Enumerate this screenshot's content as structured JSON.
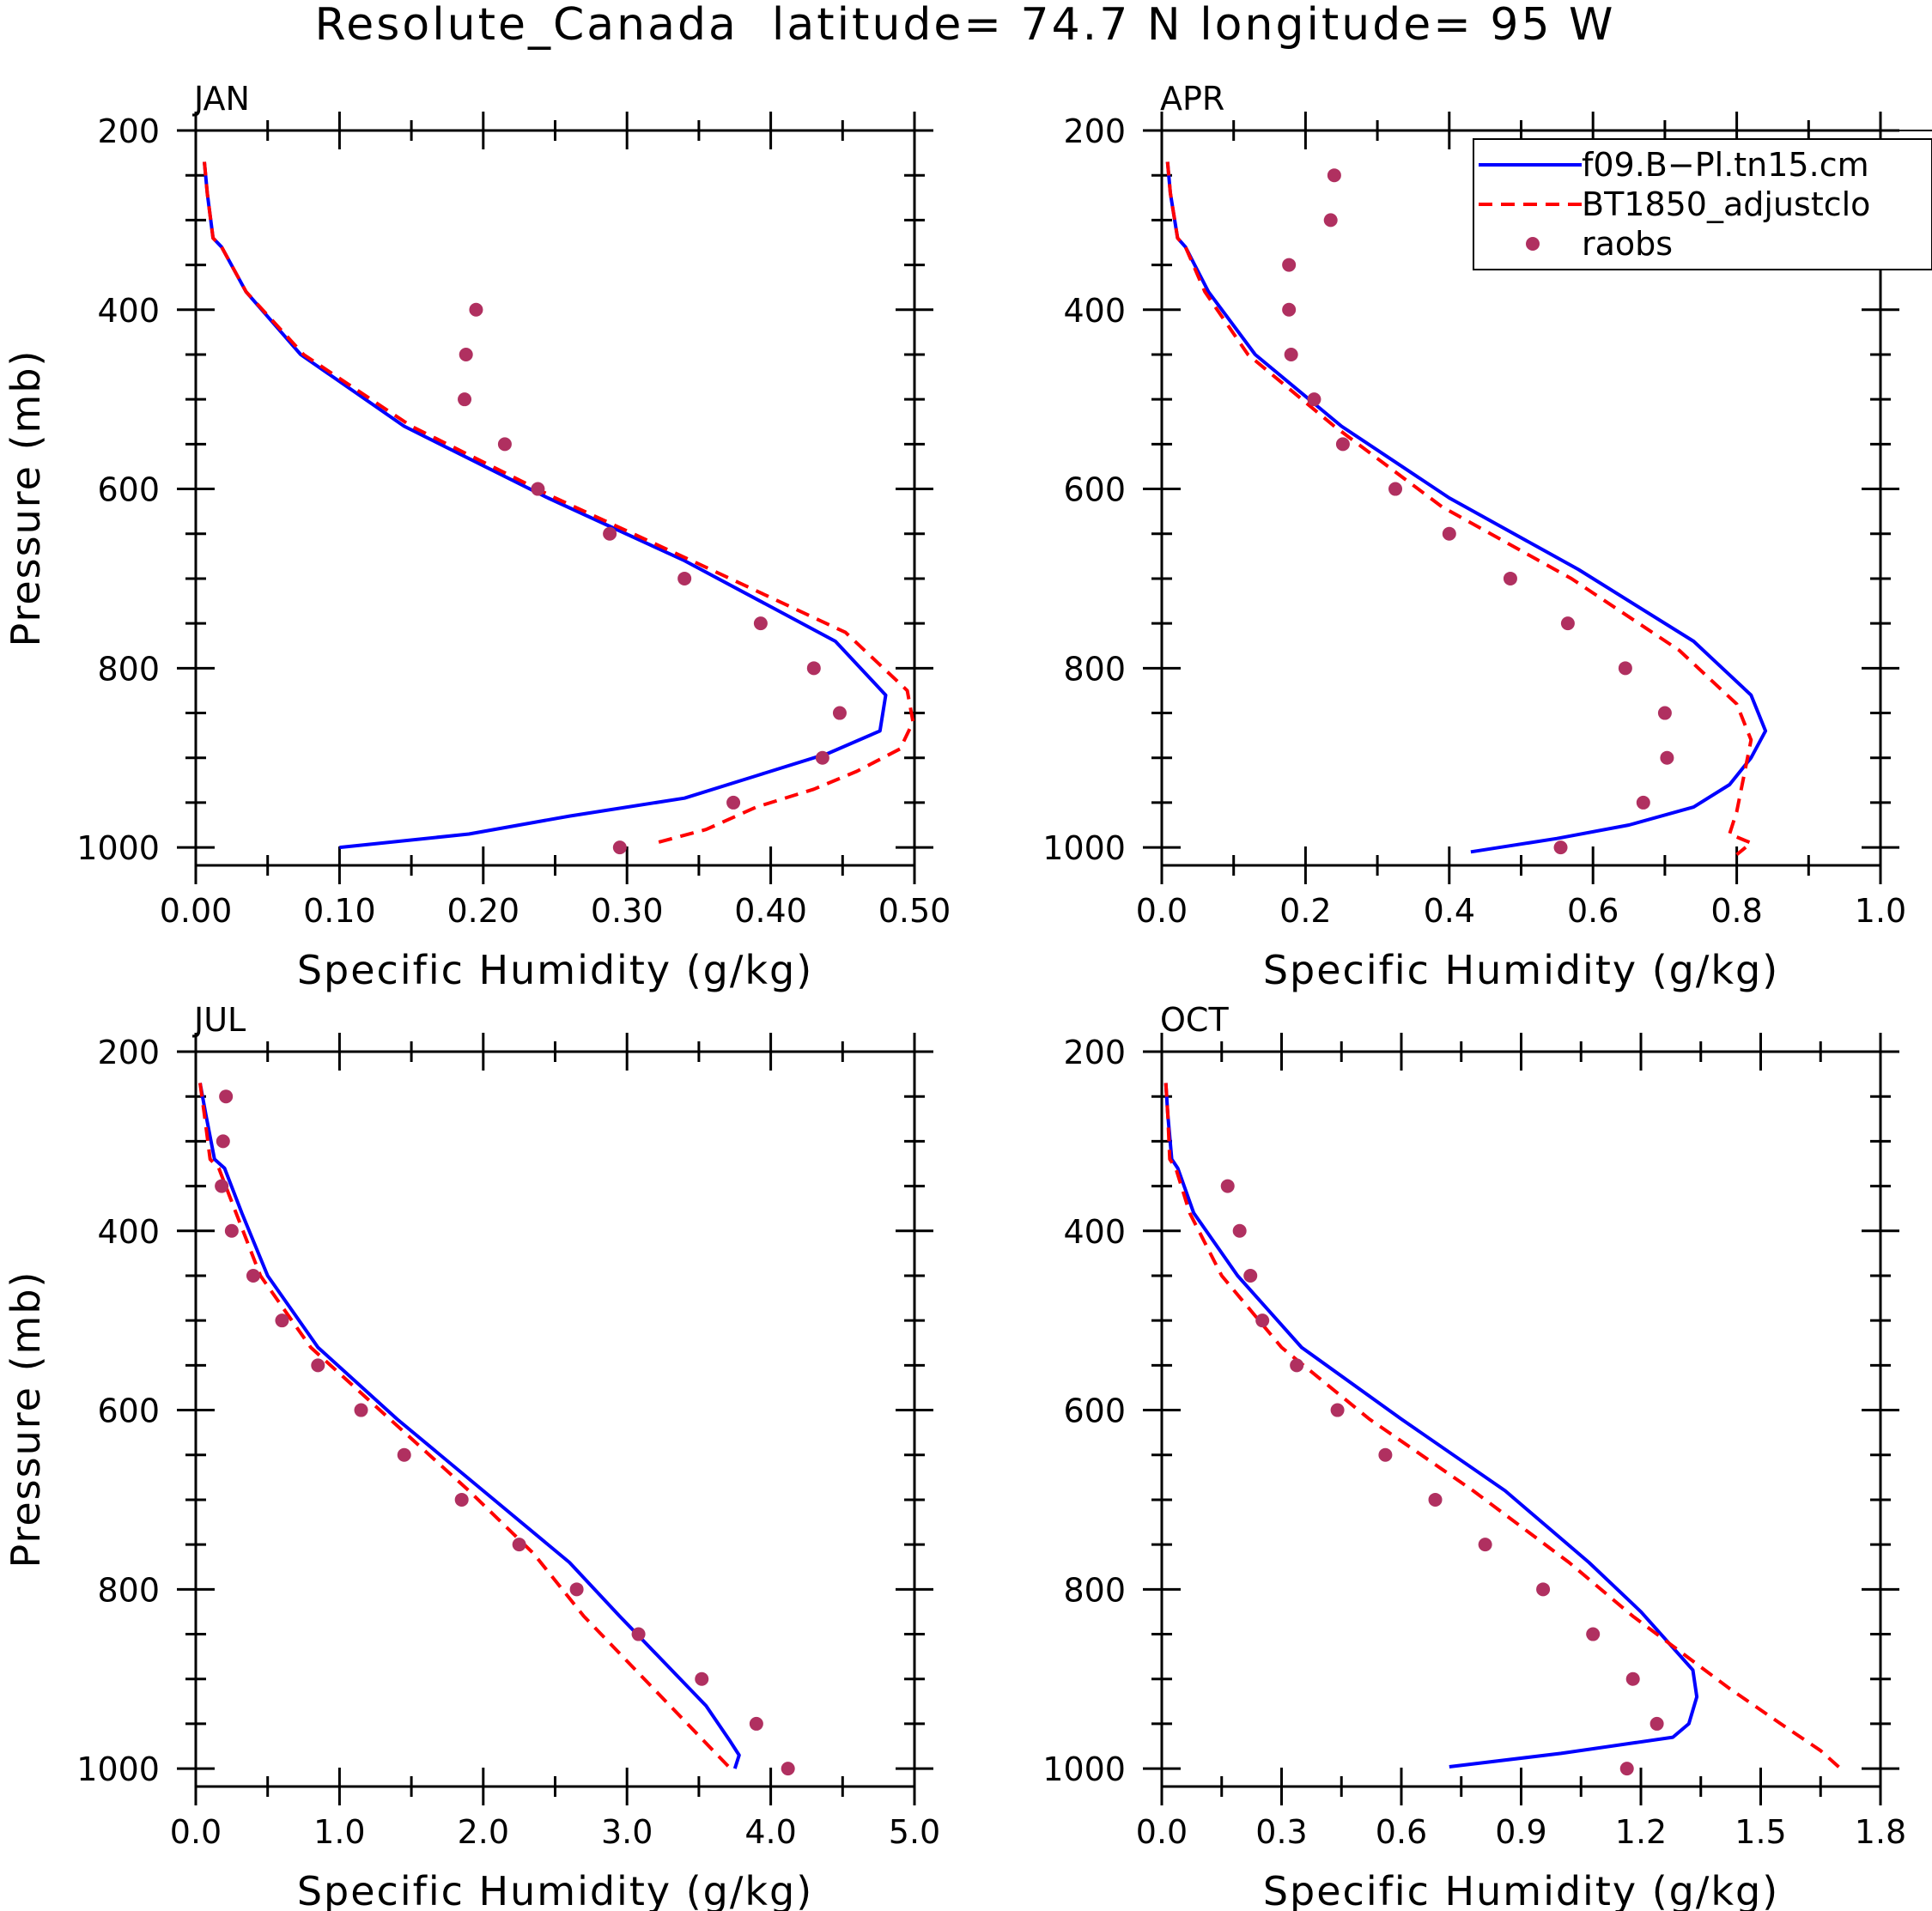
{
  "figure": {
    "title": "Resolute_Canada  latitude= 74.7 N longitude= 95 W"
  },
  "legend": {
    "entries": [
      {
        "label": "f09.B−Pl.tn15.cm",
        "style": "solid",
        "color": "#0000ff"
      },
      {
        "label": "BT1850_adjustclo",
        "style": "dashed",
        "color": "#ff0000"
      },
      {
        "label": "raobs",
        "style": "marker",
        "color": "#b03060"
      }
    ]
  },
  "colors": {
    "model": "#0000ff",
    "adjusted": "#ff0000",
    "obs": "#b03060"
  },
  "chart_data": [
    {
      "type": "line",
      "title": "JAN",
      "xlabel": "Specific Humidity (g/kg)",
      "ylabel": "Pressure (mb)",
      "xlim": [
        0,
        0.5
      ],
      "ylim": [
        1020,
        200
      ],
      "xticks": [
        "0.00",
        "0.10",
        "0.20",
        "0.30",
        "0.40",
        "0.50"
      ],
      "yticks": [
        "200",
        "400",
        "600",
        "800",
        "1000"
      ],
      "series": [
        {
          "name": "f09.B−Pl.tn15.cm",
          "x": [
            0.006,
            0.008,
            0.012,
            0.018,
            0.035,
            0.073,
            0.145,
            0.245,
            0.34,
            0.445,
            0.48,
            0.476,
            0.44,
            0.39,
            0.34,
            0.26,
            0.19,
            0.1
          ],
          "y": [
            235,
            270,
            320,
            330,
            380,
            450,
            530,
            610,
            680,
            770,
            830,
            870,
            895,
            920,
            945,
            965,
            985,
            1000
          ]
        },
        {
          "name": "BT1850_adjustclo",
          "x": [
            0.006,
            0.008,
            0.012,
            0.018,
            0.035,
            0.075,
            0.15,
            0.25,
            0.345,
            0.452,
            0.495,
            0.499,
            0.49,
            0.46,
            0.43,
            0.39,
            0.355,
            0.32
          ],
          "y": [
            235,
            270,
            320,
            330,
            380,
            450,
            530,
            610,
            680,
            760,
            825,
            860,
            890,
            915,
            935,
            955,
            980,
            995
          ]
        },
        {
          "name": "raobs",
          "x": [
            0.195,
            0.188,
            0.187,
            0.215,
            0.238,
            0.288,
            0.34,
            0.393,
            0.43,
            0.448,
            0.436,
            0.374,
            0.295
          ],
          "y": [
            400,
            450,
            500,
            550,
            600,
            650,
            700,
            750,
            800,
            850,
            900,
            950,
            1000
          ]
        }
      ]
    },
    {
      "type": "line",
      "title": "APR",
      "xlabel": "Specific Humidity (g/kg)",
      "ylabel": "",
      "xlim": [
        0,
        1.0
      ],
      "ylim": [
        1020,
        200
      ],
      "xticks": [
        "0.0",
        "0.2",
        "0.4",
        "0.6",
        "0.8",
        "1.0"
      ],
      "yticks": [
        "200",
        "400",
        "600",
        "800",
        "1000"
      ],
      "series": [
        {
          "name": "f09.B−Pl.tn15.cm",
          "x": [
            0.008,
            0.012,
            0.022,
            0.033,
            0.065,
            0.13,
            0.25,
            0.4,
            0.58,
            0.74,
            0.82,
            0.84,
            0.82,
            0.79,
            0.74,
            0.65,
            0.55,
            0.43
          ],
          "y": [
            235,
            270,
            320,
            330,
            380,
            450,
            530,
            610,
            690,
            770,
            830,
            870,
            900,
            930,
            955,
            975,
            990,
            1005
          ]
        },
        {
          "name": "BT1850_adjustclo",
          "x": [
            0.008,
            0.012,
            0.022,
            0.033,
            0.06,
            0.12,
            0.24,
            0.39,
            0.57,
            0.72,
            0.8,
            0.82,
            0.81,
            0.8,
            0.79,
            0.82,
            0.8
          ],
          "y": [
            235,
            270,
            320,
            330,
            380,
            450,
            530,
            620,
            700,
            780,
            840,
            880,
            920,
            960,
            985,
            995,
            1008
          ]
        },
        {
          "name": "raobs",
          "x": [
            0.24,
            0.235,
            0.177,
            0.177,
            0.18,
            0.212,
            0.252,
            0.325,
            0.4,
            0.485,
            0.565,
            0.645,
            0.7,
            0.703,
            0.67,
            0.555
          ],
          "y": [
            250,
            300,
            350,
            400,
            450,
            500,
            550,
            600,
            650,
            700,
            750,
            800,
            850,
            900,
            950,
            1000
          ]
        }
      ]
    },
    {
      "type": "line",
      "title": "JUL",
      "xlabel": "Specific Humidity (g/kg)",
      "ylabel": "Pressure (mb)",
      "xlim": [
        0,
        5.0
      ],
      "ylim": [
        1020,
        200
      ],
      "xticks": [
        "0.0",
        "1.0",
        "2.0",
        "3.0",
        "4.0",
        "5.0"
      ],
      "yticks": [
        "200",
        "400",
        "600",
        "800",
        "1000"
      ],
      "series": [
        {
          "name": "f09.B−Pl.tn15.cm",
          "x": [
            0.03,
            0.07,
            0.13,
            0.2,
            0.32,
            0.5,
            0.85,
            1.4,
            2.0,
            2.6,
            2.95,
            3.25,
            3.55,
            3.72,
            3.78,
            3.75
          ],
          "y": [
            235,
            270,
            320,
            330,
            380,
            450,
            530,
            610,
            690,
            770,
            830,
            880,
            930,
            970,
            985,
            1000
          ]
        },
        {
          "name": "BT1850_adjustclo",
          "x": [
            0.03,
            0.06,
            0.1,
            0.16,
            0.28,
            0.45,
            0.8,
            1.35,
            1.9,
            2.35,
            2.7,
            3.0,
            3.3,
            3.6,
            3.72
          ],
          "y": [
            235,
            270,
            320,
            330,
            380,
            450,
            530,
            610,
            690,
            760,
            830,
            880,
            930,
            980,
            1000
          ]
        },
        {
          "name": "raobs",
          "x": [
            0.21,
            0.19,
            0.18,
            0.25,
            0.4,
            0.6,
            0.85,
            1.15,
            1.45,
            1.85,
            2.25,
            2.65,
            3.08,
            3.52,
            3.9,
            4.12
          ],
          "y": [
            250,
            300,
            350,
            400,
            450,
            500,
            550,
            600,
            650,
            700,
            750,
            800,
            850,
            900,
            950,
            1000
          ]
        }
      ]
    },
    {
      "type": "line",
      "title": "OCT",
      "xlabel": "Specific Humidity (g/kg)",
      "ylabel": "",
      "xlim": [
        0,
        1.8
      ],
      "ylim": [
        1020,
        200
      ],
      "xticks": [
        "0.0",
        "0.3",
        "0.6",
        "0.9",
        "1.2",
        "1.5",
        "1.8"
      ],
      "yticks": [
        "200",
        "400",
        "600",
        "800",
        "1000"
      ],
      "series": [
        {
          "name": "f09.B−Pl.tn15.cm",
          "x": [
            0.01,
            0.015,
            0.025,
            0.04,
            0.08,
            0.19,
            0.35,
            0.6,
            0.86,
            1.07,
            1.2,
            1.27,
            1.33,
            1.34,
            1.32,
            1.28,
            1.0,
            0.72
          ],
          "y": [
            235,
            270,
            320,
            330,
            380,
            450,
            530,
            610,
            690,
            770,
            825,
            860,
            890,
            920,
            950,
            965,
            983,
            998
          ]
        },
        {
          "name": "BT1850_adjustclo",
          "x": [
            0.01,
            0.015,
            0.02,
            0.035,
            0.07,
            0.15,
            0.3,
            0.52,
            0.78,
            1.02,
            1.18,
            1.3,
            1.42,
            1.55,
            1.65,
            1.7
          ],
          "y": [
            235,
            270,
            320,
            330,
            380,
            450,
            530,
            610,
            690,
            770,
            830,
            870,
            910,
            950,
            980,
            1000
          ]
        },
        {
          "name": "raobs",
          "x": [
            0.165,
            0.195,
            0.222,
            0.252,
            0.338,
            0.44,
            0.56,
            0.685,
            0.81,
            0.955,
            1.08,
            1.18,
            1.24,
            1.165
          ],
          "y": [
            350,
            400,
            450,
            500,
            550,
            600,
            650,
            700,
            750,
            800,
            850,
            900,
            950,
            1000
          ]
        }
      ]
    }
  ]
}
